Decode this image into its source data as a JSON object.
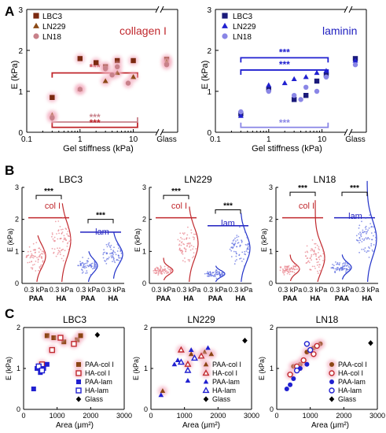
{
  "colors": {
    "lbc3": "#7b2a10",
    "ln229": "#8b4a16",
    "ln18": "#c8818a",
    "lam_dark": "#1a1a7a",
    "lam_blue": "#2020d0",
    "lam_light": "#8a86e6",
    "col_red": "#c0282d",
    "lam_text": "#2020c0",
    "glow": "#f4b3c4",
    "violin_col": "#c0282d",
    "violin_lam": "#2030c8"
  },
  "panels": {
    "A": {
      "letter": "A",
      "charts": [
        {
          "type": "scatter",
          "inset_label": "collagen I",
          "xlabel": "Gel stiffness (kPa)",
          "ylabel": "E (kPa)",
          "x_scale": "log",
          "xlim": [
            0.1,
            20
          ],
          "ylim": [
            0,
            3
          ],
          "x_ticks": [
            "0.1",
            "1",
            "10"
          ],
          "y_ticks": [
            "0",
            "1",
            "2",
            "3"
          ],
          "glass_label": "Glass",
          "legend": [
            "LBC3",
            "LN229",
            "LN18"
          ],
          "series": [
            {
              "name": "LBC3",
              "points": [
                [
                  0.3,
                  0.85
                ],
                [
                  1,
                  1.8
                ],
                [
                  2,
                  1.7
                ],
                [
                  3,
                  1.6
                ],
                [
                  5,
                  1.75
                ],
                [
                  10,
                  1.75
                ]
              ],
              "glass": 1.78
            },
            {
              "name": "LN229",
              "points": [
                [
                  0.3,
                  0.42
                ],
                [
                  1,
                  1.05
                ],
                [
                  3,
                  1.25
                ],
                [
                  5,
                  1.45
                ],
                [
                  10,
                  1.35
                ]
              ],
              "glass": 1.72
            },
            {
              "name": "LN18",
              "points": [
                [
                  0.3,
                  0.35
                ],
                [
                  1,
                  1.05
                ],
                [
                  3,
                  1.55
                ],
                [
                  4,
                  1.4
                ],
                [
                  5,
                  1.6
                ],
                [
                  8,
                  1.2
                ]
              ],
              "glass": 1.65
            }
          ],
          "brackets": [
            {
              "x1": 0.3,
              "x2": 12,
              "y": 1.45,
              "label": "***",
              "series": "LBC3",
              "ticks": "down"
            },
            {
              "x1": 0.3,
              "x2": 12,
              "y": 0.25,
              "label": "***",
              "series": "LN18",
              "ticks": "up"
            },
            {
              "x1": 0.3,
              "x2": 12,
              "y": 0.12,
              "label": "***",
              "series": "LBC3",
              "ticks": "up"
            }
          ]
        },
        {
          "type": "scatter",
          "inset_label": "laminin",
          "xlabel": "Gel stiffness (kPa)",
          "ylabel": "E (kPa)",
          "x_scale": "log",
          "xlim": [
            0.1,
            20
          ],
          "ylim": [
            0,
            3
          ],
          "x_ticks": [
            "0.1",
            "1",
            "10"
          ],
          "y_ticks": [
            "0",
            "1",
            "2",
            "3"
          ],
          "glass_label": "Glass",
          "legend": [
            "LBC3",
            "LN229",
            "LN18"
          ],
          "series": [
            {
              "name": "LBC3",
              "points": [
                [
                  0.3,
                  0.45
                ],
                [
                  1,
                  1.05
                ],
                [
                  3,
                  0.8
                ],
                [
                  5,
                  0.9
                ],
                [
                  8,
                  1.25
                ],
                [
                  12,
                  1.4
                ]
              ],
              "glass": 1.8
            },
            {
              "name": "LN229",
              "points": [
                [
                  0.3,
                  0.4
                ],
                [
                  1,
                  1.15
                ],
                [
                  2,
                  1.2
                ],
                [
                  3,
                  1.3
                ],
                [
                  5,
                  1.35
                ],
                [
                  8,
                  1.45
                ],
                [
                  12,
                  1.5
                ]
              ],
              "glass": 1.75
            },
            {
              "name": "LN18",
              "points": [
                [
                  0.3,
                  0.5
                ],
                [
                  1,
                  1.0
                ],
                [
                  3,
                  0.9
                ],
                [
                  4,
                  0.8
                ],
                [
                  5,
                  1.1
                ],
                [
                  8,
                  1.0
                ],
                [
                  12,
                  1.35
                ]
              ],
              "glass": 1.65
            }
          ],
          "brackets": [
            {
              "x1": 0.3,
              "x2": 13,
              "y": 1.82,
              "label": "***",
              "series": "LBC3",
              "ticks": "down"
            },
            {
              "x1": 0.3,
              "x2": 13,
              "y": 1.52,
              "label": "***",
              "series": "LN229",
              "ticks": "down"
            },
            {
              "x1": 0.3,
              "x2": 13,
              "y": 0.12,
              "label": "***",
              "series": "LN18",
              "ticks": "up"
            }
          ]
        }
      ]
    },
    "B": {
      "letter": "B",
      "charts": [
        {
          "type": "violin",
          "title": "LBC3",
          "ylabel": "E (kPa)",
          "ylim": [
            0,
            3
          ],
          "y_ticks": [
            "0",
            "1",
            "2",
            "3"
          ],
          "x_labels": [
            "0.3 kPa",
            "0.3 kPa",
            "0.3 kPa",
            "0.3 kPa"
          ],
          "x_sublabels": [
            "PAA",
            "HA",
            "PAA",
            "HA"
          ],
          "coating_labels": [
            "col I",
            "lam"
          ],
          "groups": [
            {
              "coating": "col I",
              "gel": "PAA",
              "median": 0.85,
              "spread": 0.35,
              "max": 1.5
            },
            {
              "coating": "col I",
              "gel": "HA",
              "median": 1.35,
              "spread": 0.55,
              "max": 2.5
            },
            {
              "coating": "lam",
              "gel": "PAA",
              "median": 0.55,
              "spread": 0.2,
              "max": 1.0
            },
            {
              "coating": "lam",
              "gel": "HA",
              "median": 0.9,
              "spread": 0.3,
              "max": 1.6
            }
          ],
          "brackets": [
            {
              "g1": 0,
              "g2": 1,
              "y": 2.75,
              "label": "***"
            },
            {
              "g1": 2,
              "g2": 3,
              "y": 2.0,
              "label": "***"
            }
          ]
        },
        {
          "type": "violin",
          "title": "LN229",
          "ylabel": "E (kPa)",
          "ylim": [
            0,
            3
          ],
          "y_ticks": [
            "0",
            "1",
            "2",
            "3"
          ],
          "x_labels": [
            "0.3 kPa",
            "0.3 kPa",
            "0.3 kPa",
            "0.3 kPa"
          ],
          "x_sublabels": [
            "PAA",
            "HA",
            "PAA",
            "HA"
          ],
          "coating_labels": [
            "col I",
            "lam"
          ],
          "groups": [
            {
              "coating": "col I",
              "gel": "PAA",
              "median": 0.4,
              "spread": 0.12,
              "max": 0.8
            },
            {
              "coating": "col I",
              "gel": "HA",
              "median": 1.25,
              "spread": 0.5,
              "max": 2.4
            },
            {
              "coating": "lam",
              "gel": "PAA",
              "median": 0.3,
              "spread": 0.1,
              "max": 0.55
            },
            {
              "coating": "lam",
              "gel": "HA",
              "median": 1.1,
              "spread": 0.45,
              "max": 2.2
            }
          ],
          "brackets": [
            {
              "g1": 0,
              "g2": 1,
              "y": 2.75,
              "label": "***"
            },
            {
              "g1": 2,
              "g2": 3,
              "y": 2.3,
              "label": "***"
            }
          ]
        },
        {
          "type": "violin",
          "title": "LN18",
          "ylabel": "E (kPa)",
          "ylim": [
            0,
            3
          ],
          "y_ticks": [
            "0",
            "1",
            "2",
            "3"
          ],
          "x_labels": [
            "0.3 kPa",
            "0.3 kPa",
            "0.3 kPa",
            "0.3 kPa"
          ],
          "x_sublabels": [
            "PAA",
            "HA",
            "PAA",
            "HA"
          ],
          "coating_labels": [
            "col I",
            "lam"
          ],
          "groups": [
            {
              "coating": "col I",
              "gel": "PAA",
              "median": 0.45,
              "spread": 0.15,
              "max": 0.9
            },
            {
              "coating": "col I",
              "gel": "HA",
              "median": 0.8,
              "spread": 0.45,
              "max": 2.6
            },
            {
              "coating": "lam",
              "gel": "PAA",
              "median": 0.5,
              "spread": 0.15,
              "max": 0.9
            },
            {
              "coating": "lam",
              "gel": "HA",
              "median": 1.4,
              "spread": 0.55,
              "max": 3.2
            }
          ],
          "brackets": [
            {
              "g1": 0,
              "g2": 1,
              "y": 2.85,
              "label": "***"
            },
            {
              "g1": 2,
              "g2": 3,
              "y": 2.85,
              "label": "***"
            }
          ]
        }
      ]
    },
    "C": {
      "letter": "C",
      "charts": [
        {
          "type": "scatter",
          "title": "LBC3",
          "xlabel": "Area (μm²)",
          "ylabel": "E (kPa)",
          "xlim": [
            0,
            3000
          ],
          "ylim": [
            0,
            2
          ],
          "x_ticks": [
            "0",
            "1000",
            "2000",
            "3000"
          ],
          "y_ticks": [
            "0",
            "1",
            "2"
          ],
          "legend": [
            "PAA-col I",
            "HA-col I",
            "PAA-lam",
            "HA-lam",
            "Glass"
          ],
          "series": [
            {
              "name": "PAA-col I",
              "points": [
                [
                  700,
                  1.8
                ],
                [
                  900,
                  1.75
                ],
                [
                  1200,
                  1.65
                ],
                [
                  1600,
                  1.7
                ],
                [
                  1700,
                  1.8
                ]
              ]
            },
            {
              "name": "HA-col I",
              "points": [
                [
                  550,
                  1.1
                ],
                [
                  850,
                  1.45
                ],
                [
                  1100,
                  1.75
                ],
                [
                  1500,
                  1.6
                ]
              ]
            },
            {
              "name": "PAA-lam",
              "points": [
                [
                  300,
                  0.5
                ],
                [
                  400,
                  1.0
                ],
                [
                  500,
                  0.9
                ],
                [
                  600,
                  1.0
                ],
                [
                  700,
                  1.1
                ]
              ]
            },
            {
              "name": "HA-lam",
              "points": [
                [
                  450,
                  1.05
                ],
                [
                  550,
                  0.95
                ]
              ]
            },
            {
              "name": "Glass",
              "points": [
                [
                  2200,
                  1.82
                ]
              ]
            }
          ]
        },
        {
          "type": "scatter",
          "title": "LN229",
          "xlabel": "Area (μm²)",
          "ylabel": "E (kPa)",
          "xlim": [
            0,
            3000
          ],
          "ylim": [
            0,
            2
          ],
          "x_ticks": [
            "0",
            "1000",
            "2000",
            "3000"
          ],
          "y_ticks": [
            "0",
            "1",
            "2"
          ],
          "legend": [
            "PAA-col I",
            "HA-col I",
            "PAA-lam",
            "HA-lam",
            "Glass"
          ],
          "series": [
            {
              "name": "PAA-col I",
              "points": [
                [
                  350,
                  0.45
                ],
                [
                  1200,
                  1.35
                ],
                [
                  1600,
                  1.4
                ],
                [
                  1800,
                  1.35
                ]
              ]
            },
            {
              "name": "HA-col I",
              "points": [
                [
                  900,
                  1.45
                ],
                [
                  1100,
                  1.1
                ],
                [
                  1500,
                  1.3
                ]
              ]
            },
            {
              "name": "PAA-lam",
              "points": [
                [
                  300,
                  0.35
                ],
                [
                  700,
                  1.1
                ],
                [
                  800,
                  1.2
                ],
                [
                  1100,
                  0.7
                ],
                [
                  1200,
                  1.45
                ],
                [
                  1700,
                  1.5
                ]
              ]
            },
            {
              "name": "HA-lam",
              "points": [
                [
                  900,
                  1.15
                ],
                [
                  1100,
                  0.95
                ],
                [
                  1300,
                  1.25
                ]
              ]
            },
            {
              "name": "Glass",
              "points": [
                [
                  2800,
                  1.68
                ]
              ]
            }
          ]
        },
        {
          "type": "scatter",
          "title": "LN18",
          "xlabel": "Area (μm²)",
          "ylabel": "E (kPa)",
          "xlim": [
            0,
            3000
          ],
          "ylim": [
            0,
            2
          ],
          "x_ticks": [
            "0",
            "1000",
            "2000",
            "3000"
          ],
          "y_ticks": [
            "0",
            "1",
            "2"
          ],
          "legend": [
            "PAA-col I",
            "HA-col I",
            "PAA-lam",
            "HA-lam",
            "Glass"
          ],
          "series": [
            {
              "name": "PAA-col I",
              "points": [
                [
                  500,
                  1.05
                ],
                [
                  700,
                  1.1
                ],
                [
                  900,
                  1.4
                ],
                [
                  1100,
                  1.5
                ],
                [
                  1300,
                  1.6
                ]
              ]
            },
            {
              "name": "HA-col I",
              "points": [
                [
                  400,
                  0.85
                ],
                [
                  600,
                  1.05
                ],
                [
                  800,
                  1.2
                ],
                [
                  1100,
                  1.35
                ],
                [
                  1200,
                  1.55
                ]
              ]
            },
            {
              "name": "PAA-lam",
              "points": [
                [
                  300,
                  0.5
                ],
                [
                  400,
                  0.6
                ],
                [
                  500,
                  0.75
                ],
                [
                  700,
                  1.0
                ],
                [
                  900,
                  1.1
                ]
              ]
            },
            {
              "name": "HA-lam",
              "points": [
                [
                  600,
                  0.95
                ],
                [
                  900,
                  1.6
                ],
                [
                  1000,
                  1.45
                ]
              ]
            },
            {
              "name": "Glass",
              "points": [
                [
                  2800,
                  1.62
                ]
              ]
            }
          ]
        }
      ]
    }
  }
}
